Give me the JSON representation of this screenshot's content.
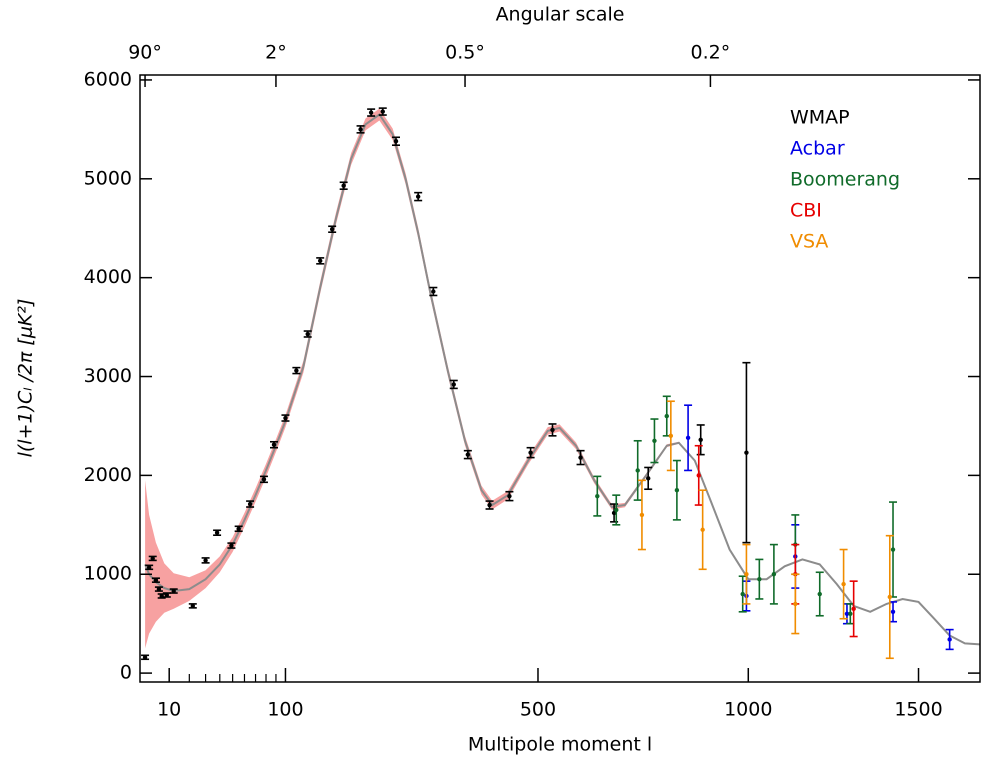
{
  "chart_data": {
    "type": "scatter",
    "x2label": "Angular scale",
    "xlabel": "Multipole moment l",
    "ylabel": "l(l+1)Cₗ /2π [μK²]",
    "xlim": [
      1,
      1700
    ],
    "ylim": [
      -90,
      6050
    ],
    "xticks": [
      10,
      100,
      500,
      1000,
      1500
    ],
    "xminorticks": [
      20,
      30,
      40,
      50,
      60,
      70,
      80,
      90
    ],
    "x2ticks": [
      {
        "value": 2,
        "label": "90°"
      },
      {
        "value": 90,
        "label": "2°"
      },
      {
        "value": 360,
        "label": "0.5°"
      },
      {
        "value": 900,
        "label": "0.2°"
      }
    ],
    "yticks": [
      0,
      1000,
      2000,
      3000,
      4000,
      5000,
      6000
    ],
    "legend": "upper right",
    "theory": {
      "color": "#8c8c8c",
      "band_color": "#f7a1a1",
      "x": [
        2,
        3,
        5,
        8,
        12,
        20,
        30,
        40,
        50,
        60,
        70,
        80,
        90,
        100,
        120,
        140,
        160,
        180,
        200,
        220,
        240,
        260,
        280,
        300,
        330,
        360,
        390,
        410,
        440,
        480,
        520,
        545,
        580,
        620,
        660,
        690,
        740,
        790,
        820,
        860,
        900,
        950,
        1000,
        1050,
        1100,
        1150,
        1200,
        1250,
        1300,
        1350,
        1400,
        1450,
        1500,
        1550,
        1600,
        1650,
        1700
      ],
      "values": [
        1100,
        1000,
        920,
        860,
        830,
        850,
        950,
        1100,
        1300,
        1550,
        1800,
        2050,
        2300,
        2550,
        3100,
        3900,
        4600,
        5200,
        5550,
        5650,
        5450,
        5000,
        4450,
        3850,
        3050,
        2350,
        1850,
        1700,
        1800,
        2150,
        2450,
        2480,
        2300,
        1950,
        1680,
        1700,
        2000,
        2300,
        2330,
        2150,
        1750,
        1250,
        950,
        950,
        1080,
        1150,
        1100,
        900,
        680,
        620,
        700,
        750,
        720,
        550,
        380,
        300,
        290
      ],
      "errors": [
        850,
        600,
        400,
        250,
        180,
        120,
        90,
        80,
        75,
        70,
        68,
        66,
        64,
        62,
        60,
        60,
        60,
        60,
        60,
        60,
        58,
        56,
        54,
        52,
        50,
        48,
        46,
        44,
        42,
        40,
        38,
        36,
        34,
        30,
        26,
        22,
        18,
        14,
        10,
        8,
        6,
        4,
        4,
        4,
        4,
        4,
        4,
        4,
        4,
        4,
        4,
        4,
        4,
        4,
        4,
        4,
        4
      ]
    },
    "series": [
      {
        "name": "WMAP",
        "color": "#000000",
        "x": [
          2,
          3,
          4,
          5,
          6,
          7,
          9,
          12,
          22,
          30,
          38,
          49,
          55,
          65,
          78,
          88,
          100,
          112,
          125,
          140,
          155,
          170,
          193,
          208,
          225,
          245,
          280,
          305,
          340,
          365,
          405,
          443,
          485,
          530,
          590,
          665,
          745,
          875,
          995
        ],
        "values": [
          160,
          1070,
          1160,
          940,
          850,
          780,
          790,
          830,
          680,
          1140,
          1420,
          1290,
          1460,
          1710,
          1960,
          2310,
          2580,
          3060,
          3430,
          4170,
          4490,
          4930,
          5500,
          5670,
          5680,
          5380,
          4820,
          3860,
          2920,
          2210,
          1700,
          1790,
          2230,
          2460,
          2180,
          1620,
          1970,
          2360,
          2230
        ],
        "errors": [
          20,
          20,
          20,
          20,
          20,
          20,
          20,
          20,
          20,
          25,
          25,
          25,
          25,
          30,
          30,
          30,
          30,
          30,
          30,
          30,
          30,
          35,
          35,
          35,
          35,
          40,
          40,
          40,
          40,
          40,
          40,
          45,
          50,
          60,
          70,
          90,
          110,
          150,
          910
        ]
      },
      {
        "name": "Acbar",
        "color": "#0000e6",
        "x": [
          843,
          995,
          1130,
          1280,
          1420,
          1600
        ],
        "values": [
          2380,
          780,
          1180,
          600,
          620,
          340
        ],
        "errors": [
          330,
          150,
          320,
          100,
          100,
          100
        ]
      },
      {
        "name": "Boomerang",
        "color": "#106b2a",
        "x": [
          627,
          670,
          720,
          760,
          790,
          815,
          985,
          1030,
          1070,
          1130,
          1200,
          1290,
          1420
        ],
        "values": [
          1790,
          1650,
          2050,
          2350,
          2600,
          1850,
          800,
          950,
          1000,
          1300,
          800,
          600,
          1250
        ],
        "errors": [
          200,
          150,
          300,
          220,
          200,
          300,
          180,
          200,
          300,
          300,
          220,
          100,
          480
        ]
      },
      {
        "name": "CBI",
        "color": "#e60000",
        "x": [
          870,
          1130,
          1300
        ],
        "values": [
          2000,
          1000,
          650
        ],
        "errors": [
          300,
          300,
          280
        ]
      },
      {
        "name": "VSA",
        "color": "#f08c00",
        "x": [
          730,
          800,
          880,
          995,
          1130,
          1270,
          1410
        ],
        "values": [
          1600,
          2400,
          1450,
          1000,
          700,
          900,
          770
        ],
        "errors": [
          350,
          350,
          400,
          300,
          300,
          350,
          620
        ]
      }
    ]
  }
}
